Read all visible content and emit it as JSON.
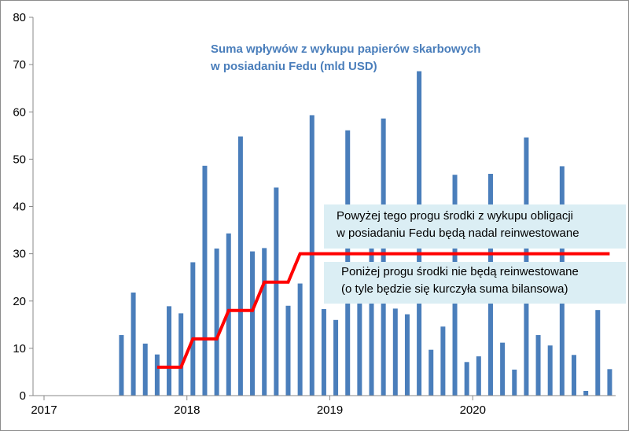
{
  "chart_data": {
    "type": "bar",
    "title_lines": [
      "Suma wpływów z wykupu papierów skarbowych",
      "w posiadaniu Fedu (mld USD)"
    ],
    "x_ticks": [
      "2017",
      "2018",
      "2019",
      "2020"
    ],
    "ylim": [
      0,
      80
    ],
    "y_ticks": [
      0,
      10,
      20,
      30,
      40,
      50,
      60,
      70,
      80
    ],
    "grid": false,
    "series": [
      {
        "type": "bar",
        "color": "#4a7ebb",
        "x": [
          "2017-07",
          "2017-08",
          "2017-09",
          "2017-10",
          "2017-11",
          "2017-12",
          "2018-01",
          "2018-02",
          "2018-03",
          "2018-04",
          "2018-05",
          "2018-06",
          "2018-07",
          "2018-08",
          "2018-09",
          "2018-10",
          "2018-11",
          "2018-12",
          "2019-01",
          "2019-02",
          "2019-03",
          "2019-04",
          "2019-05",
          "2019-06",
          "2019-07",
          "2019-08",
          "2019-09",
          "2019-10",
          "2019-11",
          "2019-12",
          "2020-01",
          "2020-02",
          "2020-03",
          "2020-04",
          "2020-05",
          "2020-06",
          "2020-07",
          "2020-08",
          "2020-09",
          "2020-10",
          "2020-11",
          "2020-12"
        ],
        "values": [
          12.8,
          21.8,
          11.0,
          8.7,
          18.9,
          17.4,
          28.2,
          48.6,
          31.1,
          34.3,
          54.8,
          30.5,
          31.2,
          44.0,
          19.0,
          23.7,
          59.3,
          18.3,
          16.0,
          56.1,
          28.0,
          33.0,
          58.6,
          18.4,
          17.2,
          68.6,
          9.7,
          14.6,
          46.7,
          7.1,
          8.3,
          46.9,
          11.2,
          5.5,
          54.6,
          12.8,
          10.6,
          48.5,
          8.6,
          1.0,
          18.1,
          5.6
        ]
      },
      {
        "type": "step-line",
        "color": "#ff0000",
        "x": [
          "2017-10",
          "2017-12",
          "2018-01",
          "2018-03",
          "2018-04",
          "2018-06",
          "2018-07",
          "2018-09",
          "2018-10",
          "2020-12"
        ],
        "values": [
          6,
          6,
          12,
          12,
          18,
          18,
          24,
          24,
          30,
          30
        ]
      }
    ],
    "annotations": {
      "above_lines": [
        "Powyżej tego progu środki z wykupu obligacji",
        "w posiadaniu Fedu będą nadal reinwestowane"
      ],
      "below_lines": [
        "Poniżej progu środki nie będą reinwestowane",
        "(o tyle będzie się kurczyła suma bilansowa)"
      ]
    }
  }
}
